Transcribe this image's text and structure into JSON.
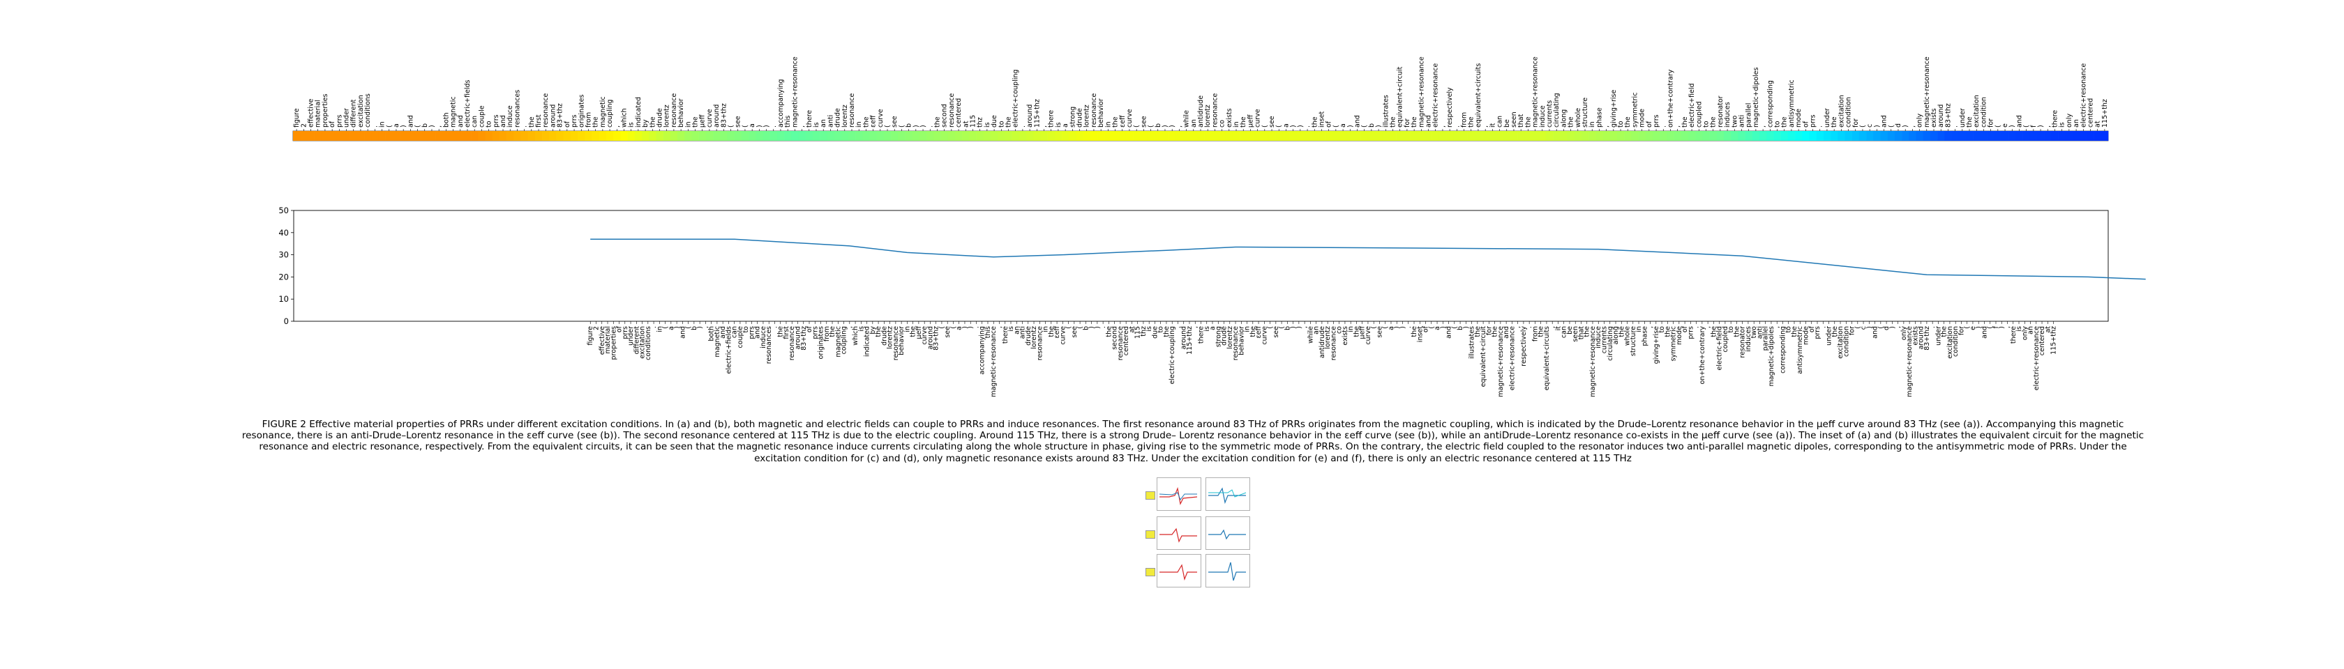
{
  "caption": "FIGURE 2 Effective material properties of PRRs under different excitation conditions. In (a) and (b), both magnetic and electric fields can couple to PRRs and induce resonances. The first resonance around 83 THz of PRRs originates from the magnetic coupling, which is indicated by the Drude–Lorentz resonance behavior in the μeff curve around 83 THz (see (a)). Accompanying this magnetic resonance, there is an anti-Drude–Lorentz resonance in the εeff curve (see (b)). The second resonance centered at 115 THz is due to the electric coupling. Around 115 THz, there is a strong Drude– Lorentz resonance behavior in the εeff curve (see (b)), while an antiDrude–Lorentz resonance co-exists in the μeff curve (see (a)). The inset of (a) and (b) illustrates the equivalent circuit for the magnetic resonance and electric resonance, respectively. From the equivalent circuits, it can be seen that the magnetic resonance induce currents circulating along the whole structure in phase, giving rise to the symmetric mode of PRRs. On the contrary, the electric field coupled to the resonator induces two anti-parallel magnetic dipoles, corresponding to the antisymmetric mode of PRRs. Under the excitation condition for (c) and (d), only magnetic resonance exists around 83 THz. Under the excitation condition for (e) and (f), there is only an electric resonance centered at 115 THz",
  "chart_data": [
    {
      "type": "heatmap",
      "colormap": "jet",
      "tokens": [
        "figure",
        "2",
        "effective",
        "material",
        "properties",
        "of",
        "prrs",
        "under",
        "different",
        "excitation",
        "conditions",
        ".",
        "in",
        "(",
        "a",
        ")",
        "and",
        "(",
        "b",
        ")",
        ",",
        "both",
        "magnetic",
        "and",
        "electric+fields",
        "can",
        "couple",
        "to",
        "prrs",
        "and",
        "induce",
        "resonances",
        ".",
        "the",
        "first",
        "resonance",
        "around",
        "83+thz",
        "of",
        "prrs",
        "originates",
        "from",
        "the",
        "magnetic",
        "coupling",
        ",",
        "which",
        "is",
        "indicated",
        "by",
        "the",
        "drude",
        "lorentz",
        "resonance",
        "behavior",
        "in",
        "the",
        "μeff",
        "curve",
        "around",
        "83+thz",
        "(",
        "see",
        "(",
        "a",
        ")",
        ")",
        ".",
        "accompanying",
        "this",
        "magnetic+resonance",
        ",",
        "there",
        "is",
        "an",
        "anti",
        "drude",
        "lorentz",
        "resonance",
        "in",
        "the",
        "εeff",
        "curve",
        "(",
        "see",
        "(",
        "b",
        ")",
        ")",
        ".",
        "the",
        "second",
        "resonance",
        "centered",
        "at",
        "115",
        "thz",
        "is",
        "due",
        "to",
        "the",
        "electric+coupling",
        ".",
        "around",
        "115+thz",
        ",",
        "there",
        "is",
        "a",
        "strong",
        "drude",
        "lorentz",
        "resonance",
        "behavior",
        "in",
        "the",
        "εeff",
        "curve",
        "(",
        "see",
        "(",
        "b",
        ")",
        ")",
        ",",
        "while",
        "an",
        "antidrude",
        "lorentz",
        "resonance",
        "co",
        "exists",
        "in",
        "the",
        "μeff",
        "curve",
        "(",
        "see",
        "(",
        "a",
        ")",
        ")",
        ".",
        "the",
        "inset",
        "of",
        "(",
        "a",
        ")",
        "and",
        "(",
        "b",
        ")",
        "illustrates",
        "the",
        "equivalent+circuit",
        "for",
        "the",
        "magnetic+resonance",
        "and",
        "electric+resonance",
        ",",
        "respectively",
        ".",
        "from",
        "the",
        "equivalent+circuits",
        ",",
        "it",
        "can",
        "be",
        "seen",
        "that",
        "the",
        "magnetic+resonance",
        "induce",
        "currents",
        "circulating",
        "along",
        "the",
        "whole",
        "structure",
        "in",
        "phase",
        ",",
        "giving+rise",
        "to",
        "the",
        "symmetric",
        "mode",
        "of",
        "prrs",
        ".",
        "on+the+contrary",
        ",",
        "the",
        "electric+field",
        "coupled",
        "to",
        "the",
        "resonator",
        "induces",
        "two",
        "anti",
        "parallel",
        "magnetic+dipoles",
        ",",
        "corresponding",
        "to",
        "the",
        "antisymmetric",
        "mode",
        "of",
        "prrs",
        ".",
        "under",
        "the",
        "excitation",
        "condition",
        "for",
        "(",
        "c",
        ")",
        "and",
        "(",
        "d",
        ")",
        ",",
        "only",
        "magnetic+resonance",
        "exists",
        "around",
        "83+thz",
        ".",
        "under",
        "the",
        "excitation",
        "condition",
        "for",
        "(",
        "e",
        ")",
        "and",
        "(",
        "f",
        ")",
        ",",
        "there",
        "is",
        "only",
        "an",
        "electric+resonance",
        "centered",
        "at",
        "115+thz"
      ],
      "value_anchors": [
        [
          0,
          37
        ],
        [
          25,
          37
        ],
        [
          45,
          34
        ],
        [
          55,
          31
        ],
        [
          70,
          29
        ],
        [
          82,
          30
        ],
        [
          100,
          32
        ],
        [
          112,
          33.5
        ],
        [
          175,
          32.5
        ],
        [
          200,
          29.5
        ],
        [
          232,
          21
        ],
        [
          260,
          20
        ],
        [
          270,
          19
        ]
      ],
      "color_range": [
        15,
        45
      ]
    },
    {
      "type": "line",
      "ylim": [
        0,
        50
      ],
      "yticks": [
        "0",
        "10",
        "20",
        "30",
        "40",
        "50"
      ],
      "line_color": "#1f77b4",
      "x_index": [
        0,
        25,
        45,
        55,
        70,
        82,
        100,
        112,
        175,
        200,
        232,
        260,
        270
      ],
      "y": [
        37,
        37,
        34,
        31,
        29,
        30,
        32,
        33.5,
        32.5,
        29.5,
        21,
        20,
        19
      ],
      "x_start_token": 51,
      "x_total": 315
    }
  ],
  "thumbnails": {
    "panels": [
      "a",
      "b",
      "c",
      "d",
      "e",
      "f"
    ]
  }
}
